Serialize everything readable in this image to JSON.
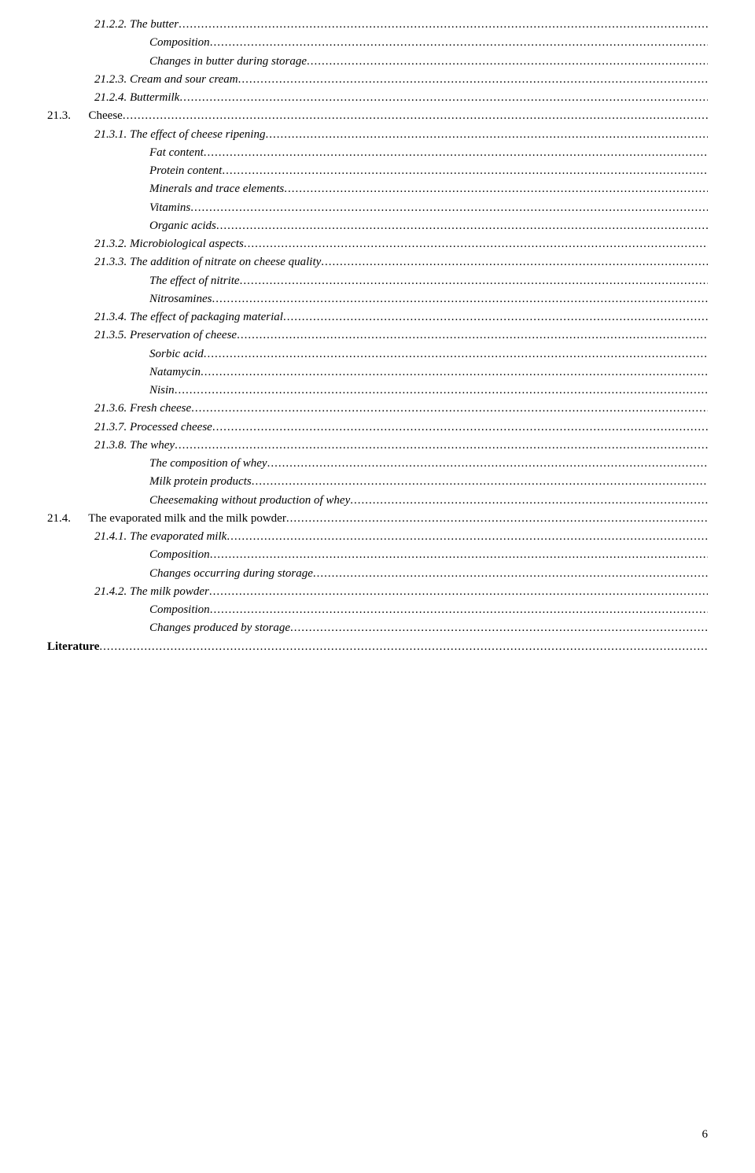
{
  "toc": [
    {
      "indent": "ind1",
      "style": "italic",
      "label": "21.2.2. The butter"
    },
    {
      "indent": "ind2",
      "style": "italic",
      "label": "Composition"
    },
    {
      "indent": "ind2",
      "style": "italic",
      "label": "Changes in butter during storage"
    },
    {
      "indent": "ind1",
      "style": "italic",
      "label": "21.2.3. Cream and sour cream"
    },
    {
      "indent": "ind1",
      "style": "italic",
      "label": "21.2.4. Buttermilk"
    },
    {
      "indent": "ind0",
      "style": "",
      "label": "21.3.      Cheese"
    },
    {
      "indent": "ind1",
      "style": "italic",
      "label": "21.3.1. The effect of cheese ripening"
    },
    {
      "indent": "ind2",
      "style": "italic",
      "label": "Fat content"
    },
    {
      "indent": "ind2",
      "style": "italic",
      "label": "Protein content"
    },
    {
      "indent": "ind2",
      "style": "italic",
      "label": "Minerals and trace elements"
    },
    {
      "indent": "ind2",
      "style": "italic",
      "label": "Vitamins"
    },
    {
      "indent": "ind2",
      "style": "italic",
      "label": "Organic acids"
    },
    {
      "indent": "ind1",
      "style": "italic",
      "label": "21.3.2. Microbiological aspects"
    },
    {
      "indent": "ind1",
      "style": "italic",
      "label": "21.3.3. The addition of nitrate on cheese quality"
    },
    {
      "indent": "ind2",
      "style": "italic",
      "label": "The effect of nitrite"
    },
    {
      "indent": "ind2",
      "style": "italic",
      "label": "Nitrosamines"
    },
    {
      "indent": "ind1",
      "style": "italic",
      "label": "21.3.4. The effect of packaging material"
    },
    {
      "indent": "ind1",
      "style": "italic",
      "label": "21.3.5. Preservation of cheese"
    },
    {
      "indent": "ind2",
      "style": "italic",
      "label": "Sorbic acid"
    },
    {
      "indent": "ind2",
      "style": "italic",
      "label": "Natamycin"
    },
    {
      "indent": "ind2",
      "style": "italic",
      "label": "Nisin"
    },
    {
      "indent": "ind1",
      "style": "italic",
      "label": "21.3.6. Fresh cheese"
    },
    {
      "indent": "ind1",
      "style": "italic",
      "label": "21.3.7. Processed cheese"
    },
    {
      "indent": "ind1",
      "style": "italic",
      "label": "21.3.8. The whey"
    },
    {
      "indent": "ind2",
      "style": "italic",
      "label": "The composition of whey"
    },
    {
      "indent": "ind2",
      "style": "italic",
      "label": "Milk protein products"
    },
    {
      "indent": "ind2",
      "style": "italic",
      "label": "Cheesemaking without production of whey"
    },
    {
      "indent": "ind0",
      "style": "",
      "label": "21.4.      The evaporated milk and the milk powder"
    },
    {
      "indent": "ind1",
      "style": "italic",
      "label": "21.4.1. The evaporated milk"
    },
    {
      "indent": "ind2",
      "style": "italic",
      "label": "Composition"
    },
    {
      "indent": "ind2",
      "style": "italic",
      "label": "Changes occurring during storage"
    },
    {
      "indent": "ind1",
      "style": "italic",
      "label": "21.4.2. The milk powder"
    },
    {
      "indent": "ind2",
      "style": "italic",
      "label": "Composition"
    },
    {
      "indent": "ind2",
      "style": "italic",
      "label": "Changes produced by storage"
    },
    {
      "indent": "indH",
      "style": "bold",
      "label": "Literature"
    }
  ],
  "pageNumber": "6"
}
